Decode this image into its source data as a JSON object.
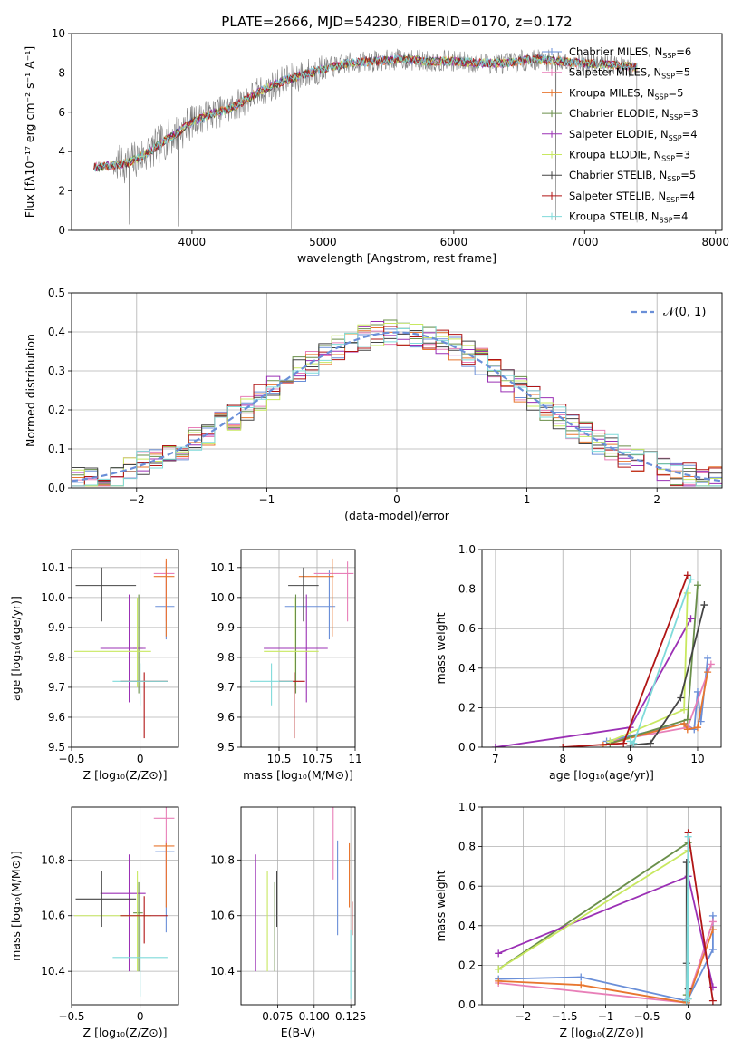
{
  "chart_data": [
    {
      "id": "spectrum",
      "type": "line",
      "title": "PLATE=2666, MJD=54230, FIBERID=0170, z=0.172",
      "xlabel": "wavelength [Angstrom, rest frame]",
      "ylabel": "Flux [fλ10⁻¹⁷ erg cm⁻² s⁻¹ A⁻¹]",
      "xlim": [
        3080,
        8050
      ],
      "ylim": [
        0,
        10
      ],
      "xticks": [
        4000,
        5000,
        6000,
        7000,
        8000
      ],
      "yticks": [
        0,
        2,
        4,
        6,
        8,
        10
      ],
      "grid": false,
      "legend_position": "top-right",
      "legend": [
        {
          "label": "Chabrier MILES, N_SSP=6",
          "main": "Chabrier MILES, N",
          "sub": "SSP",
          "tail": "=6",
          "color": "#6a8fd8"
        },
        {
          "label": "Salpeter MILES, N_SSP=5",
          "main": "Salpeter MILES, N",
          "sub": "SSP",
          "tail": "=5",
          "color": "#e87fb8"
        },
        {
          "label": "Kroupa MILES, N_SSP=5",
          "main": "Kroupa MILES, N",
          "sub": "SSP",
          "tail": "=5",
          "color": "#e8762f"
        },
        {
          "label": "Chabrier ELODIE, N_SSP=3",
          "main": "Chabrier ELODIE, N",
          "sub": "SSP",
          "tail": "=3",
          "color": "#6a8f4a"
        },
        {
          "label": "Salpeter ELODIE, N_SSP=4",
          "main": "Salpeter ELODIE, N",
          "sub": "SSP",
          "tail": "=4",
          "color": "#9b30b5"
        },
        {
          "label": "Kroupa ELODIE, N_SSP=3",
          "main": "Kroupa ELODIE, N",
          "sub": "SSP",
          "tail": "=3",
          "color": "#c8e860"
        },
        {
          "label": "Chabrier STELIB, N_SSP=5",
          "main": "Chabrier STELIB, N",
          "sub": "SSP",
          "tail": "=5",
          "color": "#444444"
        },
        {
          "label": "Salpeter STELIB, N_SSP=4",
          "main": "Salpeter STELIB, N",
          "sub": "SSP",
          "tail": "=4",
          "color": "#b01515"
        },
        {
          "label": "Kroupa STELIB, N_SSP=4",
          "main": "Kroupa STELIB, N",
          "sub": "SSP",
          "tail": "=4",
          "color": "#7fdada"
        }
      ],
      "data_color": "#808080",
      "continuum": {
        "x": [
          3250,
          3400,
          3500,
          3600,
          3700,
          3800,
          3900,
          4000,
          4100,
          4200,
          4300,
          4400,
          4500,
          4600,
          4700,
          4800,
          4900,
          5000,
          5200,
          5400,
          5600,
          5800,
          6000,
          6200,
          6400,
          6600,
          6800,
          7000,
          7200,
          7400
        ],
        "y": [
          3.2,
          3.3,
          3.4,
          3.7,
          4.1,
          4.6,
          5.0,
          5.5,
          5.8,
          6.0,
          6.2,
          6.6,
          7.0,
          7.3,
          7.6,
          7.8,
          8.0,
          8.2,
          8.5,
          8.6,
          8.7,
          8.6,
          8.6,
          8.5,
          8.5,
          8.7,
          8.6,
          8.5,
          8.4,
          8.3
        ]
      }
    },
    {
      "id": "residuals",
      "type": "histogram",
      "xlabel": "(data-model)/error",
      "ylabel": "Normed distribution",
      "xlim": [
        -2.5,
        2.5
      ],
      "ylim": [
        0,
        0.5
      ],
      "xticks": [
        -2,
        -1,
        0,
        1,
        2
      ],
      "yticks": [
        0.0,
        0.1,
        0.2,
        0.3,
        0.4,
        0.5
      ],
      "grid": true,
      "legend_position": "top-right",
      "legend": [
        {
          "label": "N(0,1)",
          "math": "𝒩(0, 1)",
          "color": "#6a8fd8",
          "style": "dashed"
        }
      ],
      "bin_width": 0.1,
      "gaussian": {
        "mean": 0,
        "sigma": 1
      }
    },
    {
      "id": "age-vs-Z",
      "type": "scatter",
      "xlabel": "Z [log₁₀(Z/Z⊙)]",
      "ylabel": "age  [log₁₀(age/yr)]",
      "xlim": [
        -0.5,
        0.28
      ],
      "ylim": [
        9.5,
        10.16
      ],
      "xticks": [
        -0.5,
        0.0
      ],
      "yticks": [
        9.5,
        9.6,
        9.7,
        9.8,
        9.9,
        10.0,
        10.1
      ],
      "grid": true
    },
    {
      "id": "age-vs-mass",
      "type": "scatter",
      "xlabel": "mass [log₁₀(M/M⊙)]",
      "xlim": [
        10.25,
        11.0
      ],
      "ylim": [
        9.5,
        10.16
      ],
      "xticks": [
        10.5,
        10.75,
        11.0
      ],
      "yticks": [
        9.5,
        9.6,
        9.7,
        9.8,
        9.9,
        10.0,
        10.1
      ],
      "grid": true
    },
    {
      "id": "massweight-vs-age",
      "type": "line",
      "xlabel": "age  [log₁₀(age/yr)]",
      "ylabel": "mass weight",
      "xlim": [
        6.8,
        10.35
      ],
      "ylim": [
        0,
        1.0
      ],
      "xticks": [
        7,
        8,
        9,
        10
      ],
      "yticks": [
        0.0,
        0.2,
        0.4,
        0.6,
        0.8,
        1.0
      ],
      "grid": true
    },
    {
      "id": "mass-vs-Z",
      "type": "scatter",
      "xlabel": "Z [log₁₀(Z/Z⊙)]",
      "ylabel": "mass [log₁₀(M/M⊙)]",
      "xlim": [
        -0.5,
        0.28
      ],
      "ylim": [
        10.28,
        10.99
      ],
      "xticks": [
        -0.5,
        0.0
      ],
      "yticks": [
        10.4,
        10.6,
        10.8
      ],
      "grid": true
    },
    {
      "id": "mass-vs-ebv",
      "type": "scatter",
      "xlabel": "E(B-V)",
      "xlim": [
        0.05,
        0.128
      ],
      "ylim": [
        10.28,
        10.99
      ],
      "xticks": [
        0.075,
        0.1,
        0.125
      ],
      "xticklabels": [
        "0.075",
        "0.100",
        "0.125"
      ],
      "yticks": [
        10.4,
        10.6,
        10.8
      ],
      "grid": true
    },
    {
      "id": "massweight-vs-Z",
      "type": "line",
      "xlabel": "Z [log₁₀(Z/Z⊙)]",
      "ylabel": "mass weight",
      "xlim": [
        -2.5,
        0.4
      ],
      "ylim": [
        0,
        1.0
      ],
      "xticks": [
        -2.0,
        -1.5,
        -1.0,
        -0.5,
        0.0
      ],
      "yticks": [
        0.0,
        0.2,
        0.4,
        0.6,
        0.8,
        1.0
      ],
      "grid": true
    }
  ],
  "models": [
    {
      "name": "Chabrier MILES",
      "color": "#6a8fd8",
      "Z": 0.19,
      "Z_err": [
        0.08,
        0.06
      ],
      "age": 9.97,
      "age_err": [
        0.11,
        0.12
      ],
      "mass": 10.83,
      "mass_err": [
        0.29,
        0.04
      ],
      "ebv": 0.116,
      "mass_err_ebv": [
        0.3,
        0.04
      ],
      "hist_offset": 0.05,
      "sfh_age": [
        8.65,
        9.8,
        9.95,
        10.0,
        10.05,
        10.15
      ],
      "sfh_age_w": [
        0.03,
        0.12,
        0.09,
        0.28,
        0.13,
        0.45
      ],
      "sfh_Z": [
        -2.3,
        -1.3,
        -0.02,
        0.0,
        0.3,
        0.3
      ],
      "sfh_Z_w": [
        0.13,
        0.14,
        0.02,
        0.03,
        0.28,
        0.45
      ]
    },
    {
      "name": "Salpeter MILES",
      "color": "#e87fb8",
      "Z": 0.19,
      "Z_err": [
        0.09,
        0.06
      ],
      "age": 10.08,
      "age_err": [
        0.16,
        0.04
      ],
      "mass": 10.95,
      "mass_err": [
        0.22,
        0.04
      ],
      "ebv": 0.113,
      "mass_err_ebv": [
        0.22,
        0.04
      ],
      "hist_offset": 0.03,
      "sfh_age": [
        8.7,
        9.85,
        10.2
      ],
      "sfh_age_w": [
        0.03,
        0.1,
        0.42
      ],
      "sfh_Z": [
        -2.3,
        -0.02,
        0.3
      ],
      "sfh_Z_w": [
        0.11,
        0.01,
        0.42
      ]
    },
    {
      "name": "Kroupa MILES",
      "color": "#e8762f",
      "Z": 0.19,
      "Z_err": [
        0.09,
        0.06
      ],
      "age": 10.07,
      "age_err": [
        0.2,
        0.06
      ],
      "mass": 10.85,
      "mass_err": [
        0.22,
        0.01
      ],
      "ebv": 0.124,
      "mass_err_ebv": [
        0.22,
        0.01
      ],
      "hist_offset": 0.045,
      "sfh_age": [
        8.6,
        9.8,
        9.85,
        10.0,
        10.15
      ],
      "sfh_age_w": [
        0.01,
        0.12,
        0.09,
        0.1,
        0.38
      ],
      "sfh_Z": [
        -2.3,
        -1.3,
        -0.02,
        0.0,
        0.3
      ],
      "sfh_Z_w": [
        0.12,
        0.1,
        0.01,
        0.03,
        0.38
      ]
    },
    {
      "name": "Chabrier ELODIE",
      "color": "#6a8f4a",
      "Z": -0.01,
      "Z_err": [
        0.04,
        0.03
      ],
      "age": 9.83,
      "age_err": [
        0.15,
        0.18
      ],
      "mass": 10.61,
      "mass_err": [
        0.21,
        0.11
      ],
      "ebv": 0.073,
      "mass_err_ebv": [
        0.21,
        0.11
      ],
      "hist_offset": 0.035,
      "sfh_age": [
        8.7,
        9.85,
        10.0
      ],
      "sfh_age_w": [
        0.02,
        0.14,
        0.82
      ],
      "sfh_Z": [
        -2.3,
        0.0,
        -0.02
      ],
      "sfh_Z_w": [
        0.18,
        0.82,
        0.05
      ]
    },
    {
      "name": "Salpeter ELODIE",
      "color": "#9b30b5",
      "Z": -0.08,
      "Z_err": [
        0.21,
        0.12
      ],
      "age": 9.83,
      "age_err": [
        0.18,
        0.18
      ],
      "mass": 10.68,
      "mass_err": [
        0.28,
        0.14
      ],
      "ebv": 0.06,
      "mass_err_ebv": [
        0.28,
        0.14
      ],
      "hist_offset": 0.065,
      "sfh_age": [
        7.0,
        9.0,
        9.9
      ],
      "sfh_age_w": [
        0.0,
        0.1,
        0.65
      ],
      "sfh_Z": [
        -2.3,
        0.0,
        0.3
      ],
      "sfh_Z_w": [
        0.26,
        0.65,
        0.09
      ]
    },
    {
      "name": "Kroupa ELODIE",
      "color": "#c8e860",
      "Z": -0.02,
      "Z_err": [
        0.46,
        0.1
      ],
      "age": 9.82,
      "age_err": [
        0.12,
        0.18
      ],
      "mass": 10.6,
      "mass_err": [
        0.2,
        0.16
      ],
      "ebv": 0.068,
      "mass_err_ebv": [
        0.2,
        0.16
      ],
      "hist_offset": 0.015,
      "sfh_age": [
        8.7,
        9.8,
        9.85
      ],
      "sfh_age_w": [
        0.03,
        0.19,
        0.78
      ],
      "sfh_Z": [
        -2.3,
        0.0,
        0.0
      ],
      "sfh_Z_w": [
        0.18,
        0.78,
        0.78
      ]
    },
    {
      "name": "Chabrier STELIB",
      "color": "#444444",
      "Z": -0.28,
      "Z_err": [
        0.19,
        0.25
      ],
      "age": 10.04,
      "age_err": [
        0.12,
        0.06
      ],
      "mass": 10.66,
      "mass_err": [
        0.1,
        0.1
      ],
      "ebv": 0.0745,
      "mass_err_ebv": [
        0.1,
        0.1
      ],
      "hist_offset": 0.025,
      "sfh_age": [
        9.0,
        9.3,
        9.75,
        10.1
      ],
      "sfh_age_w": [
        0.01,
        0.02,
        0.25,
        0.72
      ],
      "sfh_Z": [
        -0.02,
        -0.02,
        -0.02,
        0.0
      ],
      "sfh_Z_w": [
        0.21,
        0.72,
        0.02,
        0.08
      ]
    },
    {
      "name": "Salpeter STELIB",
      "color": "#b01515",
      "Z": 0.03,
      "Z_err": [
        0.17,
        0.17
      ],
      "age": 9.72,
      "age_err": [
        0.19,
        0.03
      ],
      "mass": 10.6,
      "mass_err": [
        0.1,
        0.07
      ],
      "ebv": 0.126,
      "mass_err_ebv": [
        0.07,
        0.05
      ],
      "hist_offset": 0.055,
      "sfh_age": [
        8.0,
        8.9,
        9.85
      ],
      "sfh_age_w": [
        0.0,
        0.02,
        0.87
      ],
      "sfh_Z": [
        -0.02,
        0.0,
        0.3
      ],
      "sfh_Z_w": [
        0.02,
        0.87,
        0.02
      ]
    },
    {
      "name": "Kroupa STELIB",
      "color": "#7fdada",
      "Z": 0.0,
      "Z_err": [
        0.2,
        0.2
      ],
      "age": 9.72,
      "age_err": [
        0.08,
        0.06
      ],
      "mass": 10.45,
      "mass_err": [
        0.14,
        0.14
      ],
      "ebv": 0.125,
      "mass_err_ebv": [
        0.15,
        0.1
      ],
      "hist_offset": 0.01,
      "sfh_age": [
        9.0,
        9.05,
        9.9
      ],
      "sfh_age_w": [
        0.03,
        0.02,
        0.85
      ],
      "sfh_Z": [
        -0.02,
        0.0,
        0.0
      ],
      "sfh_Z_w": [
        0.02,
        0.85,
        0.03
      ]
    }
  ]
}
